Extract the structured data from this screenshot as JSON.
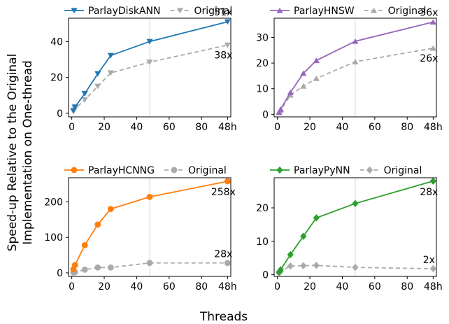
{
  "figure": {
    "xlabel": "Threads",
    "ylabel_line1": "Speed-up Relative to the Original",
    "ylabel_line2": "Implementation on One-thread"
  },
  "chart_data": [
    {
      "type": "line",
      "x_ticks": [
        "0",
        "20",
        "40",
        "60",
        "80",
        "48h"
      ],
      "xlim": [
        -2,
        98
      ],
      "y_ticks": [
        0,
        20,
        40
      ],
      "ylim": [
        -2,
        53
      ],
      "grid": "vertical line at x=48",
      "legend_placement": "top",
      "series": [
        {
          "name": "ParlayDiskANN",
          "color": "#1f77b4",
          "marker": "triangle-down",
          "dashed": false,
          "x": [
            1,
            2,
            8,
            16,
            24,
            48,
            96
          ],
          "y": [
            1.5,
            3.5,
            11,
            22,
            32.2,
            40,
            51
          ]
        },
        {
          "name": "Original",
          "color": "#aaaaaa",
          "marker": "triangle-down",
          "dashed": true,
          "x": [
            1,
            2,
            8,
            16,
            24,
            48,
            96
          ],
          "y": [
            1,
            2.5,
            7.5,
            15,
            22.5,
            28.5,
            38
          ]
        }
      ],
      "annotations": [
        "51x",
        "38x"
      ]
    },
    {
      "type": "line",
      "x_ticks": [
        "0",
        "20",
        "40",
        "60",
        "80",
        "48h"
      ],
      "xlim": [
        -2,
        98
      ],
      "y_ticks": [
        0,
        10,
        20,
        30
      ],
      "ylim": [
        -1,
        37.5
      ],
      "grid": "vertical line at x=48",
      "legend_placement": "top",
      "series": [
        {
          "name": "ParlayHNSW",
          "color": "#9467bd",
          "marker": "triangle-up",
          "dashed": false,
          "x": [
            1,
            2,
            8,
            16,
            24,
            48,
            96
          ],
          "y": [
            0.8,
            2,
            8.5,
            16,
            21,
            28.5,
            36
          ]
        },
        {
          "name": "Original",
          "color": "#aaaaaa",
          "marker": "triangle-up",
          "dashed": true,
          "x": [
            1,
            2,
            8,
            16,
            24,
            48,
            96
          ],
          "y": [
            0.7,
            1.5,
            7.5,
            11,
            14,
            20.5,
            25.8
          ]
        }
      ],
      "annotations": [
        "36x",
        "26x"
      ]
    },
    {
      "type": "line",
      "x_ticks": [
        "0",
        "20",
        "40",
        "60",
        "80",
        "48h"
      ],
      "xlim": [
        -2,
        98
      ],
      "y_ticks": [
        0,
        100,
        200
      ],
      "ylim": [
        -10,
        268
      ],
      "grid": "vertical line at x=48",
      "legend_placement": "top",
      "series": [
        {
          "name": "ParlayHCNNG",
          "color": "#ff7f0e",
          "marker": "circle",
          "dashed": false,
          "x": [
            1,
            2,
            8,
            16,
            24,
            48,
            96
          ],
          "y": [
            10,
            22,
            78,
            136,
            180,
            214,
            258
          ]
        },
        {
          "name": "Original",
          "color": "#aaaaaa",
          "marker": "circle",
          "dashed": true,
          "x": [
            1,
            2,
            8,
            16,
            24,
            48,
            96
          ],
          "y": [
            1,
            2,
            9,
            15,
            15,
            28,
            28
          ]
        }
      ],
      "annotations": [
        "258x",
        "28x"
      ]
    },
    {
      "type": "line",
      "x_ticks": [
        "0",
        "20",
        "40",
        "60",
        "80",
        "48h"
      ],
      "xlim": [
        -2,
        98
      ],
      "y_ticks": [
        0,
        10,
        20
      ],
      "ylim": [
        -0.5,
        29
      ],
      "grid": "vertical line at x=48",
      "legend_placement": "top",
      "series": [
        {
          "name": "ParlayPyNN",
          "color": "#2ca02c",
          "marker": "diamond",
          "dashed": false,
          "x": [
            1,
            2,
            8,
            16,
            24,
            48,
            96
          ],
          "y": [
            0.8,
            1.5,
            6,
            11.5,
            17,
            21.3,
            28
          ]
        },
        {
          "name": "Original",
          "color": "#aaaaaa",
          "marker": "diamond",
          "dashed": true,
          "x": [
            1,
            2,
            8,
            16,
            24,
            48,
            96
          ],
          "y": [
            0.5,
            1,
            2.6,
            2.7,
            2.8,
            2.2,
            1.8
          ]
        }
      ],
      "annotations": [
        "28x",
        "2x"
      ]
    }
  ]
}
